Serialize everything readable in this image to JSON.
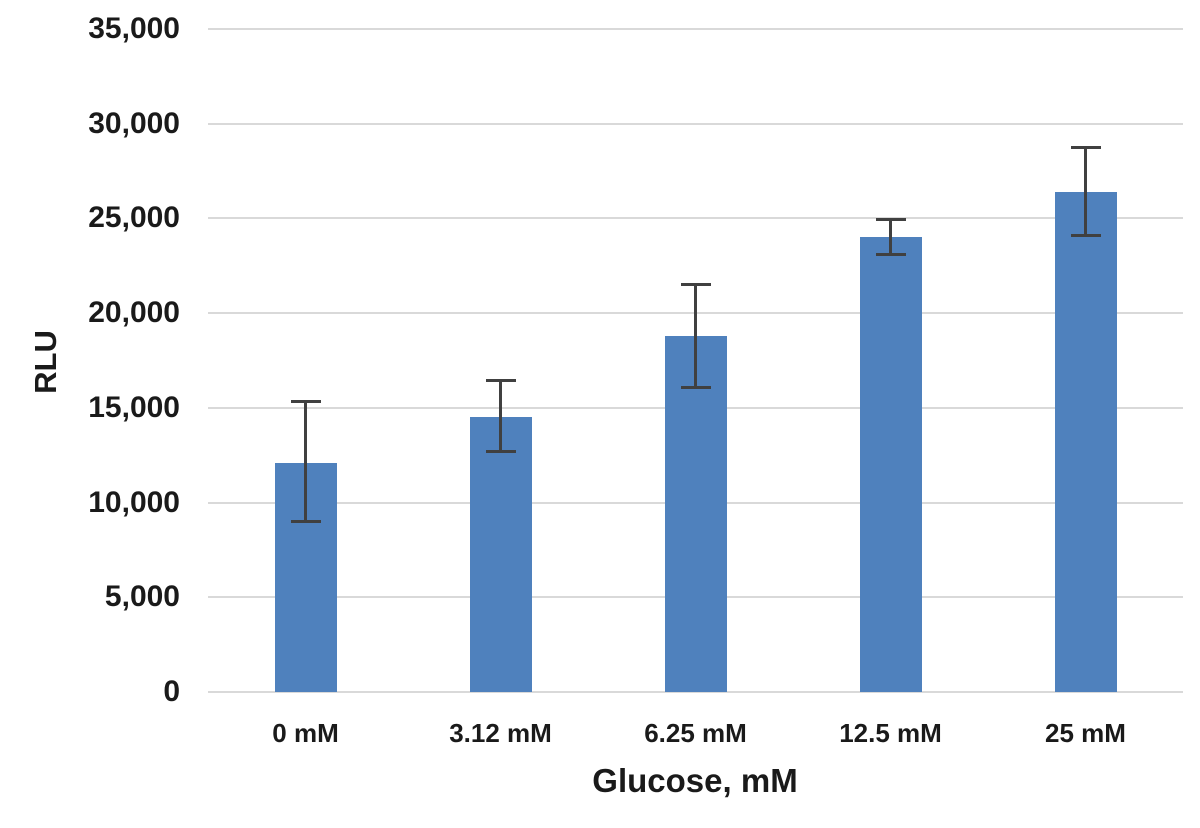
{
  "figure": {
    "background": "#ffffff"
  },
  "chart_data": {
    "type": "bar",
    "title": "",
    "xlabel": "Glucose, mM",
    "ylabel": "RLU",
    "categories": [
      "0 mM",
      "3.12 mM",
      "6.25 mM",
      "12.5 mM",
      "25 mM"
    ],
    "values": [
      12100,
      14500,
      18800,
      24000,
      26400
    ],
    "error_upper": [
      15400,
      16500,
      21600,
      25000,
      28800
    ],
    "error_lower": [
      8900,
      12600,
      16000,
      23000,
      24000
    ],
    "ylim": [
      0,
      35000
    ],
    "ytick_step": 5000,
    "yticks": [
      0,
      5000,
      10000,
      15000,
      20000,
      25000,
      30000,
      35000
    ],
    "ytick_labels": [
      "0",
      "5,000",
      "10,000",
      "15,000",
      "20,000",
      "25,000",
      "30,000",
      "35,000"
    ],
    "grid": true,
    "legend": false,
    "colors": {
      "bar": "#4f81bd",
      "error_bar": "#404040",
      "gridline": "#d9d9d9",
      "axis_line": "#d9d9d9",
      "text": "#1a1a1a"
    }
  }
}
